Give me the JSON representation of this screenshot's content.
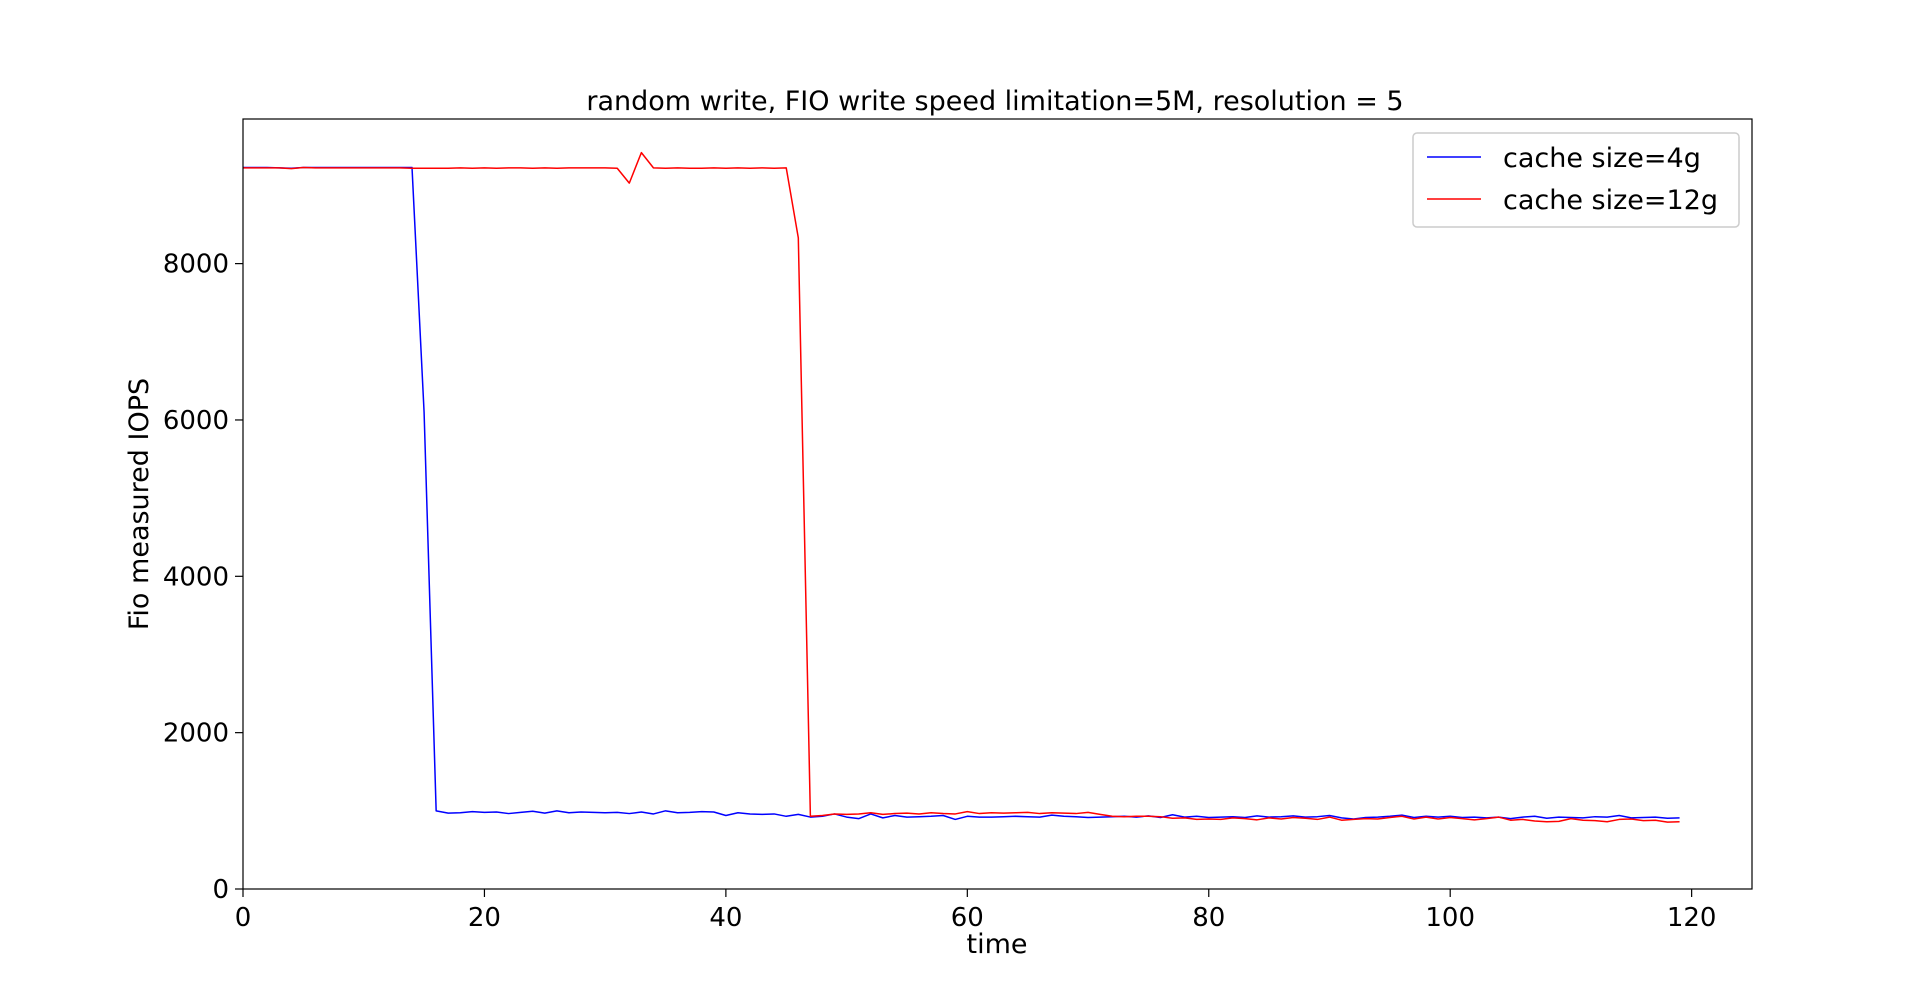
{
  "chart_data": {
    "type": "line",
    "title": "random write, FIO write speed limitation=5M, resolution = 5",
    "xlabel": "time",
    "ylabel": "Fio measured IOPS",
    "xlim": [
      0,
      125
    ],
    "ylim": [
      0,
      9850
    ],
    "xticks": [
      0,
      20,
      40,
      60,
      80,
      100,
      120
    ],
    "yticks": [
      0,
      2000,
      4000,
      6000,
      8000
    ],
    "grid": false,
    "legend_position": "top-right",
    "series": [
      {
        "name": "cache size=4g",
        "color": "#0000ff",
        "x": [
          0,
          1,
          2,
          3,
          4,
          5,
          6,
          7,
          8,
          9,
          10,
          11,
          12,
          13,
          14,
          15,
          16,
          17,
          18,
          19,
          20,
          21,
          22,
          23,
          24,
          25,
          26,
          27,
          28,
          29,
          30,
          31,
          32,
          33,
          34,
          35,
          36,
          37,
          38,
          39,
          40,
          41,
          42,
          43,
          44,
          45,
          46,
          47,
          48,
          49,
          50,
          51,
          52,
          53,
          54,
          55,
          56,
          57,
          58,
          59,
          60,
          61,
          62,
          63,
          64,
          65,
          66,
          67,
          68,
          69,
          70,
          71,
          72,
          73,
          74,
          75,
          76,
          77,
          78,
          79,
          80,
          81,
          82,
          83,
          84,
          85,
          86,
          87,
          88,
          89,
          90,
          91,
          92,
          93,
          94,
          95,
          96,
          97,
          98,
          99,
          100,
          101,
          102,
          103,
          104,
          105,
          106,
          107,
          108,
          109,
          110,
          111,
          112,
          113,
          114,
          115,
          116,
          117,
          118,
          119
        ],
        "y": [
          9230,
          9230,
          9230,
          9225,
          9220,
          9230,
          9230,
          9230,
          9230,
          9230,
          9230,
          9230,
          9230,
          9230,
          9230,
          6100,
          1000,
          970,
          975,
          990,
          980,
          985,
          965,
          980,
          995,
          970,
          1000,
          975,
          985,
          980,
          975,
          980,
          965,
          985,
          960,
          1000,
          975,
          980,
          990,
          985,
          940,
          975,
          960,
          955,
          960,
          930,
          955,
          920,
          930,
          960,
          920,
          900,
          960,
          910,
          940,
          920,
          925,
          930,
          940,
          890,
          930,
          920,
          920,
          925,
          930,
          925,
          920,
          945,
          930,
          925,
          915,
          920,
          925,
          930,
          920,
          935,
          915,
          950,
          920,
          930,
          915,
          920,
          925,
          915,
          935,
          920,
          925,
          935,
          920,
          925,
          940,
          910,
          895,
          915,
          920,
          930,
          945,
          915,
          930,
          920,
          930,
          915,
          920,
          910,
          920,
          900,
          920,
          930,
          905,
          920,
          915,
          910,
          925,
          920,
          940,
          910,
          915,
          920,
          905,
          910
        ]
      },
      {
        "name": "cache size=12g",
        "color": "#ff0000",
        "x": [
          0,
          1,
          2,
          3,
          4,
          5,
          6,
          7,
          8,
          9,
          10,
          11,
          12,
          13,
          14,
          15,
          16,
          17,
          18,
          19,
          20,
          21,
          22,
          23,
          24,
          25,
          26,
          27,
          28,
          29,
          30,
          31,
          32,
          33,
          34,
          35,
          36,
          37,
          38,
          39,
          40,
          41,
          42,
          43,
          44,
          45,
          46,
          47,
          48,
          49,
          50,
          51,
          52,
          53,
          54,
          55,
          56,
          57,
          58,
          59,
          60,
          61,
          62,
          63,
          64,
          65,
          66,
          67,
          68,
          69,
          70,
          71,
          72,
          73,
          74,
          75,
          76,
          77,
          78,
          79,
          80,
          81,
          82,
          83,
          84,
          85,
          86,
          87,
          88,
          89,
          90,
          91,
          92,
          93,
          94,
          95,
          96,
          97,
          98,
          99,
          100,
          101,
          102,
          103,
          104,
          105,
          106,
          107,
          108,
          109,
          110,
          111,
          112,
          113,
          114,
          115,
          116,
          117,
          118,
          119
        ],
        "y": [
          9225,
          9225,
          9225,
          9225,
          9215,
          9230,
          9225,
          9225,
          9225,
          9225,
          9225,
          9225,
          9225,
          9225,
          9220,
          9220,
          9220,
          9220,
          9225,
          9220,
          9225,
          9220,
          9225,
          9225,
          9220,
          9225,
          9220,
          9225,
          9225,
          9225,
          9225,
          9220,
          9030,
          9420,
          9225,
          9220,
          9225,
          9220,
          9220,
          9225,
          9220,
          9225,
          9220,
          9225,
          9220,
          9225,
          8330,
          930,
          940,
          960,
          955,
          960,
          975,
          955,
          965,
          970,
          960,
          975,
          965,
          960,
          990,
          965,
          975,
          970,
          975,
          980,
          965,
          975,
          970,
          965,
          980,
          955,
          930,
          925,
          930,
          930,
          925,
          905,
          910,
          890,
          895,
          890,
          910,
          900,
          885,
          910,
          895,
          915,
          905,
          890,
          920,
          880,
          890,
          900,
          895,
          915,
          930,
          895,
          920,
          895,
          915,
          900,
          885,
          900,
          920,
          880,
          890,
          870,
          860,
          865,
          900,
          880,
          875,
          860,
          890,
          895,
          875,
          880,
          855,
          860
        ]
      }
    ]
  }
}
